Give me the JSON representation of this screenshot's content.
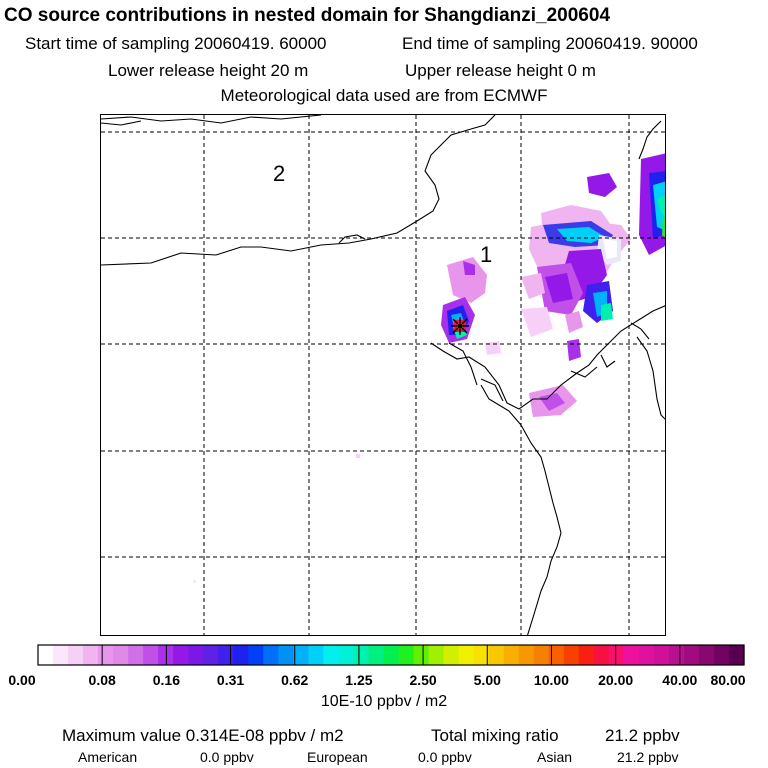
{
  "header": {
    "title": "CO  source contributions in nested domain for Shangdianzi_200604",
    "start_sampling": "Start time of sampling 20060419. 60000",
    "end_sampling": "End time of sampling 20060419. 90000",
    "lower_release": "Lower release height   20 m",
    "upper_release": "Upper release height    0 m",
    "met_data": "Meteorological data used are from ECMWF"
  },
  "map": {
    "domain_labels": [
      "1",
      "2"
    ],
    "receptor_marker": "star-marker"
  },
  "colorbar": {
    "ticks": [
      "0.00",
      "0.08",
      "0.16",
      "0.31",
      "0.62",
      "1.25",
      "2.50",
      "5.00",
      "10.00",
      "20.00",
      "40.00",
      "80.00"
    ],
    "colors": [
      "#ffffff",
      "#fbe6fb",
      "#f7d0f7",
      "#f0b4f0",
      "#e896ec",
      "#e08ae8",
      "#d070e8",
      "#c050e8",
      "#a830e8",
      "#9418e8",
      "#7a18e8",
      "#6020e8",
      "#4020ec",
      "#2020f0",
      "#0040f8",
      "#0070f8",
      "#0090f8",
      "#00b0f8",
      "#00d0f8",
      "#00f0f0",
      "#00f0d8",
      "#00f0b0",
      "#00f080",
      "#00f050",
      "#20f020",
      "#60f000",
      "#a0f000",
      "#d0f000",
      "#f0f000",
      "#f8e000",
      "#f8c800",
      "#f8b000",
      "#f89800",
      "#f88000",
      "#f86000",
      "#f84000",
      "#f82010",
      "#f81040",
      "#f81070",
      "#f010a0",
      "#e010a0",
      "#d01098",
      "#b81090",
      "#a00c80",
      "#880870",
      "#700460",
      "#580050"
    ],
    "units": "10E-10 ppbv / m2"
  },
  "summary": {
    "max_value": "Maximum value  0.314E-08 ppbv / m2",
    "total_mixing": "Total mixing ratio",
    "total_value": "21.2 ppbv"
  },
  "regions": [
    {
      "name": "American",
      "value": "0.0 ppbv"
    },
    {
      "name": "European",
      "value": "0.0 ppbv"
    },
    {
      "name": "Asian",
      "value": "21.2 ppbv"
    }
  ]
}
